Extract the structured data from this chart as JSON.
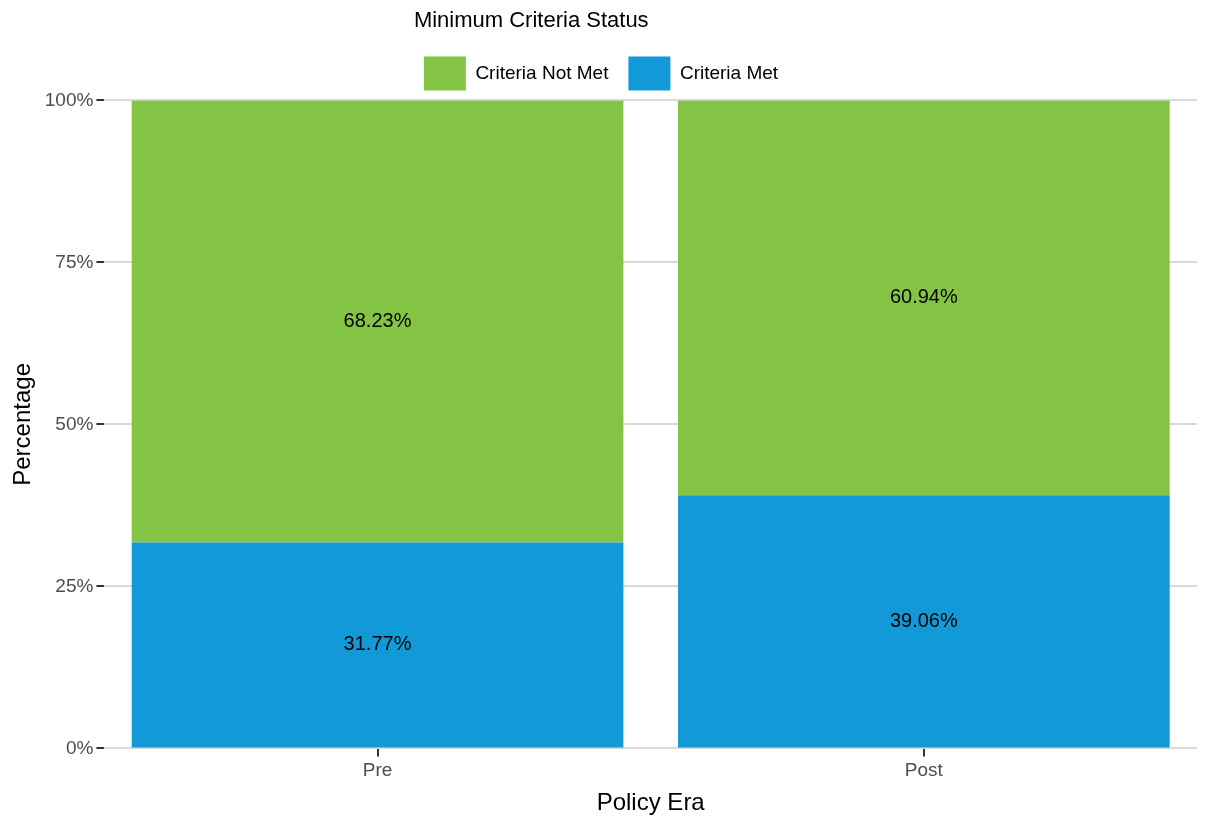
{
  "chart_data": {
    "type": "bar",
    "stacked": true,
    "xlabel": "Policy Era",
    "ylabel": "Percentage",
    "legend_title": "Minimum Criteria Status",
    "categories": [
      "Pre",
      "Post"
    ],
    "series": [
      {
        "name": "Criteria Met",
        "color": "#129ad8",
        "values": [
          31.77,
          39.06
        ],
        "value_labels": [
          "31.77%",
          "39.06%"
        ]
      },
      {
        "name": "Criteria Not Met",
        "color": "#84c444",
        "values": [
          68.23,
          60.94
        ],
        "value_labels": [
          "68.23%",
          "60.94%"
        ]
      }
    ],
    "ylim": [
      0,
      100
    ],
    "yticks": [
      {
        "value": 0,
        "label": "0%"
      },
      {
        "value": 25,
        "label": "25%"
      },
      {
        "value": 50,
        "label": "50%"
      },
      {
        "value": 75,
        "label": "75%"
      },
      {
        "value": 100,
        "label": "100%"
      }
    ],
    "grid": true,
    "legend": "top"
  }
}
